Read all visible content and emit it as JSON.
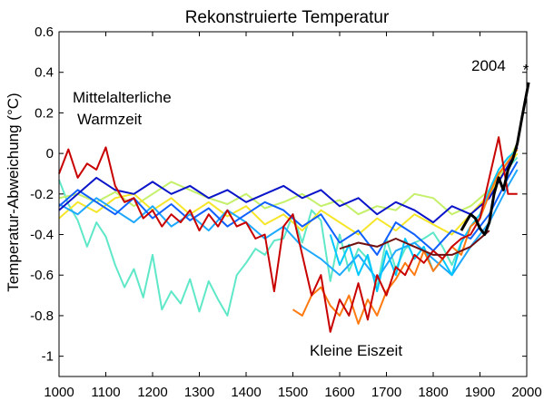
{
  "chart_data": {
    "type": "line",
    "title": "Rekonstruierte Temperatur",
    "xlabel": "",
    "ylabel": "Temperatur-Abweichung (°C)",
    "xlim": [
      1000,
      2000
    ],
    "ylim": [
      -1.1,
      0.6
    ],
    "xticks": [
      1000,
      1100,
      1200,
      1300,
      1400,
      1500,
      1600,
      1700,
      1800,
      1900,
      2000
    ],
    "yticks": [
      -1,
      -0.8,
      -0.6,
      -0.4,
      -0.2,
      0,
      0.2,
      0.4,
      0.6
    ],
    "xtick_labels": [
      "1000",
      "1100",
      "1200",
      "1300",
      "1400",
      "1500",
      "1600",
      "1700",
      "1800",
      "1900",
      "2000"
    ],
    "ytick_labels": [
      "-1",
      "-0.8",
      "-0.6",
      "-0.4",
      "-0.2",
      "0",
      "0.2",
      "0.4",
      "0.6"
    ],
    "grid": false,
    "legend": "none",
    "annotations": {
      "warm": [
        "Mittelalterliche",
        "Warmzeit"
      ],
      "cold": "Kleine Eiszeit",
      "marker_label": "2004",
      "marker_symbol": "*"
    },
    "marker": {
      "x": 2004,
      "y": 0.45
    },
    "series": [
      {
        "color": "#5fe8c8",
        "x": [
          1000,
          1020,
          1040,
          1060,
          1080,
          1100,
          1120,
          1140,
          1160,
          1180,
          1200,
          1220,
          1240,
          1260,
          1280,
          1300,
          1320,
          1340,
          1360,
          1380,
          1400,
          1420,
          1440,
          1460,
          1480,
          1500,
          1520,
          1540,
          1560,
          1580,
          1600,
          1620,
          1640,
          1660,
          1680,
          1700,
          1720,
          1740,
          1760,
          1780,
          1800,
          1820,
          1840,
          1860,
          1880,
          1900,
          1920,
          1940,
          1960,
          1980
        ],
        "values": [
          -0.13,
          -0.25,
          -0.33,
          -0.46,
          -0.34,
          -0.41,
          -0.55,
          -0.66,
          -0.57,
          -0.71,
          -0.5,
          -0.77,
          -0.68,
          -0.74,
          -0.62,
          -0.78,
          -0.63,
          -0.72,
          -0.8,
          -0.6,
          -0.54,
          -0.47,
          -0.5,
          -0.43,
          -0.42,
          -0.3,
          -0.44,
          -0.28,
          -0.33,
          -0.63,
          -0.4,
          -0.58,
          -0.47,
          -0.52,
          -0.66,
          -0.42,
          -0.57,
          -0.47,
          -0.44,
          -0.42,
          -0.39,
          -0.46,
          -0.55,
          -0.44,
          -0.36,
          -0.32,
          -0.2,
          -0.1,
          -0.07,
          -0.02
        ]
      },
      {
        "color": "#c4f06a",
        "x": [
          1000,
          1040,
          1080,
          1120,
          1160,
          1200,
          1240,
          1280,
          1320,
          1360,
          1400,
          1440,
          1480,
          1520,
          1560,
          1600,
          1640,
          1680,
          1720,
          1760,
          1800,
          1840,
          1880,
          1920,
          1960,
          1980
        ],
        "values": [
          -0.22,
          -0.2,
          -0.24,
          -0.19,
          -0.26,
          -0.2,
          -0.14,
          -0.18,
          -0.22,
          -0.25,
          -0.2,
          -0.27,
          -0.24,
          -0.2,
          -0.26,
          -0.23,
          -0.3,
          -0.26,
          -0.28,
          -0.2,
          -0.22,
          -0.3,
          -0.26,
          -0.18,
          -0.04,
          0.05
        ]
      },
      {
        "color": "#f5e62a",
        "x": [
          1000,
          1040,
          1080,
          1120,
          1160,
          1200,
          1240,
          1280,
          1320,
          1360,
          1400,
          1440,
          1480,
          1520,
          1560,
          1600,
          1640,
          1680,
          1720,
          1760,
          1800,
          1840,
          1880,
          1920,
          1960,
          1980
        ],
        "values": [
          -0.32,
          -0.24,
          -0.29,
          -0.22,
          -0.2,
          -0.28,
          -0.22,
          -0.3,
          -0.24,
          -0.31,
          -0.26,
          -0.35,
          -0.3,
          -0.38,
          -0.28,
          -0.34,
          -0.4,
          -0.32,
          -0.38,
          -0.3,
          -0.35,
          -0.4,
          -0.3,
          -0.2,
          -0.06,
          0.0
        ]
      },
      {
        "color": "#1ea8ff",
        "x": [
          1000,
          1040,
          1080,
          1120,
          1160,
          1200,
          1240,
          1280,
          1320,
          1360,
          1400,
          1440,
          1480,
          1520,
          1560,
          1600,
          1640,
          1680,
          1720,
          1760,
          1800,
          1840,
          1880,
          1920,
          1960,
          1980
        ],
        "values": [
          -0.25,
          -0.3,
          -0.22,
          -0.28,
          -0.34,
          -0.26,
          -0.36,
          -0.3,
          -0.38,
          -0.28,
          -0.34,
          -0.42,
          -0.36,
          -0.46,
          -0.52,
          -0.6,
          -0.5,
          -0.62,
          -0.48,
          -0.44,
          -0.52,
          -0.6,
          -0.46,
          -0.34,
          -0.16,
          -0.08
        ]
      },
      {
        "color": "#1060ff",
        "x": [
          1000,
          1040,
          1080,
          1120,
          1160,
          1200,
          1240,
          1280,
          1320,
          1360,
          1400,
          1440,
          1480,
          1520,
          1560,
          1600,
          1640,
          1680,
          1720,
          1760,
          1800,
          1840,
          1880,
          1920,
          1960,
          1980
        ],
        "values": [
          -0.26,
          -0.18,
          -0.24,
          -0.3,
          -0.22,
          -0.32,
          -0.25,
          -0.33,
          -0.27,
          -0.36,
          -0.3,
          -0.24,
          -0.28,
          -0.36,
          -0.3,
          -0.44,
          -0.38,
          -0.5,
          -0.34,
          -0.4,
          -0.48,
          -0.38,
          -0.42,
          -0.3,
          -0.12,
          -0.04
        ]
      },
      {
        "color": "#0a14c8",
        "x": [
          1000,
          1040,
          1080,
          1120,
          1160,
          1200,
          1240,
          1280,
          1320,
          1360,
          1400,
          1440,
          1480,
          1520,
          1560,
          1600,
          1640,
          1680,
          1720,
          1760,
          1800,
          1840,
          1880,
          1920,
          1960,
          1980
        ],
        "values": [
          -0.28,
          -0.2,
          -0.12,
          -0.18,
          -0.2,
          -0.14,
          -0.2,
          -0.16,
          -0.22,
          -0.18,
          -0.24,
          -0.2,
          -0.16,
          -0.22,
          -0.18,
          -0.26,
          -0.22,
          -0.3,
          -0.24,
          -0.28,
          -0.34,
          -0.26,
          -0.3,
          -0.22,
          -0.06,
          0.03
        ]
      },
      {
        "color": "#00c8ff",
        "x": [
          1580,
          1600,
          1620,
          1640,
          1660,
          1680,
          1700,
          1720,
          1740,
          1760,
          1780,
          1800,
          1820,
          1840,
          1860,
          1880,
          1900,
          1920,
          1940,
          1960,
          1980
        ],
        "values": [
          -0.4,
          -0.55,
          -0.45,
          -0.6,
          -0.5,
          -0.68,
          -0.48,
          -0.6,
          -0.42,
          -0.52,
          -0.46,
          -0.58,
          -0.52,
          -0.6,
          -0.44,
          -0.36,
          -0.3,
          -0.18,
          -0.08,
          -0.02,
          0.02
        ]
      },
      {
        "color": "#ff7a10",
        "x": [
          1500,
          1520,
          1540,
          1560,
          1580,
          1600,
          1620,
          1640,
          1660,
          1680,
          1700,
          1720,
          1740,
          1760,
          1780,
          1800,
          1820,
          1840,
          1860,
          1880,
          1900,
          1920,
          1940,
          1960,
          1980
        ],
        "values": [
          -0.77,
          -0.8,
          -0.7,
          -0.66,
          -0.75,
          -0.8,
          -0.7,
          -0.84,
          -0.72,
          -0.8,
          -0.68,
          -0.62,
          -0.54,
          -0.6,
          -0.48,
          -0.58,
          -0.52,
          -0.46,
          -0.5,
          -0.36,
          -0.32,
          -0.2,
          -0.1,
          -0.04,
          0.02
        ]
      },
      {
        "color": "#c80000",
        "x": [
          1000,
          1020,
          1040,
          1060,
          1080,
          1100,
          1120,
          1140,
          1160,
          1180,
          1200,
          1220,
          1240,
          1260,
          1280,
          1300,
          1320,
          1340,
          1360,
          1380,
          1400,
          1420,
          1440,
          1460,
          1480,
          1500,
          1520,
          1540,
          1560,
          1580,
          1600,
          1620,
          1640,
          1660,
          1680,
          1700,
          1720,
          1740,
          1760,
          1780,
          1800,
          1820,
          1840,
          1860,
          1880,
          1900,
          1920,
          1940,
          1960,
          1980
        ],
        "values": [
          -0.1,
          0.02,
          -0.12,
          -0.05,
          -0.08,
          0.03,
          -0.16,
          -0.24,
          -0.22,
          -0.32,
          -0.28,
          -0.36,
          -0.3,
          -0.34,
          -0.28,
          -0.38,
          -0.3,
          -0.36,
          -0.28,
          -0.36,
          -0.34,
          -0.42,
          -0.4,
          -0.68,
          -0.36,
          -0.3,
          -0.5,
          -0.7,
          -0.6,
          -0.88,
          -0.72,
          -0.8,
          -0.64,
          -0.82,
          -0.6,
          -0.7,
          -0.56,
          -0.6,
          -0.5,
          -0.54,
          -0.48,
          -0.52,
          -0.46,
          -0.42,
          -0.4,
          -0.32,
          -0.12,
          0.08,
          -0.2,
          -0.2
        ]
      },
      {
        "color": "#701010",
        "x": [
          1600,
          1640,
          1680,
          1720,
          1760,
          1800,
          1840,
          1880,
          1920
        ],
        "values": [
          -0.47,
          -0.44,
          -0.46,
          -0.42,
          -0.46,
          -0.5,
          -0.5,
          -0.46,
          -0.38
        ]
      },
      {
        "color": "#000000",
        "x": [
          1860,
          1870,
          1880,
          1890,
          1900,
          1910,
          1920,
          1930,
          1940,
          1950,
          1960,
          1970,
          1980,
          1990,
          2004
        ],
        "values": [
          -0.38,
          -0.34,
          -0.3,
          -0.32,
          -0.37,
          -0.4,
          -0.34,
          -0.2,
          -0.12,
          -0.18,
          -0.08,
          -0.03,
          0.05,
          0.18,
          0.35
        ]
      }
    ]
  }
}
